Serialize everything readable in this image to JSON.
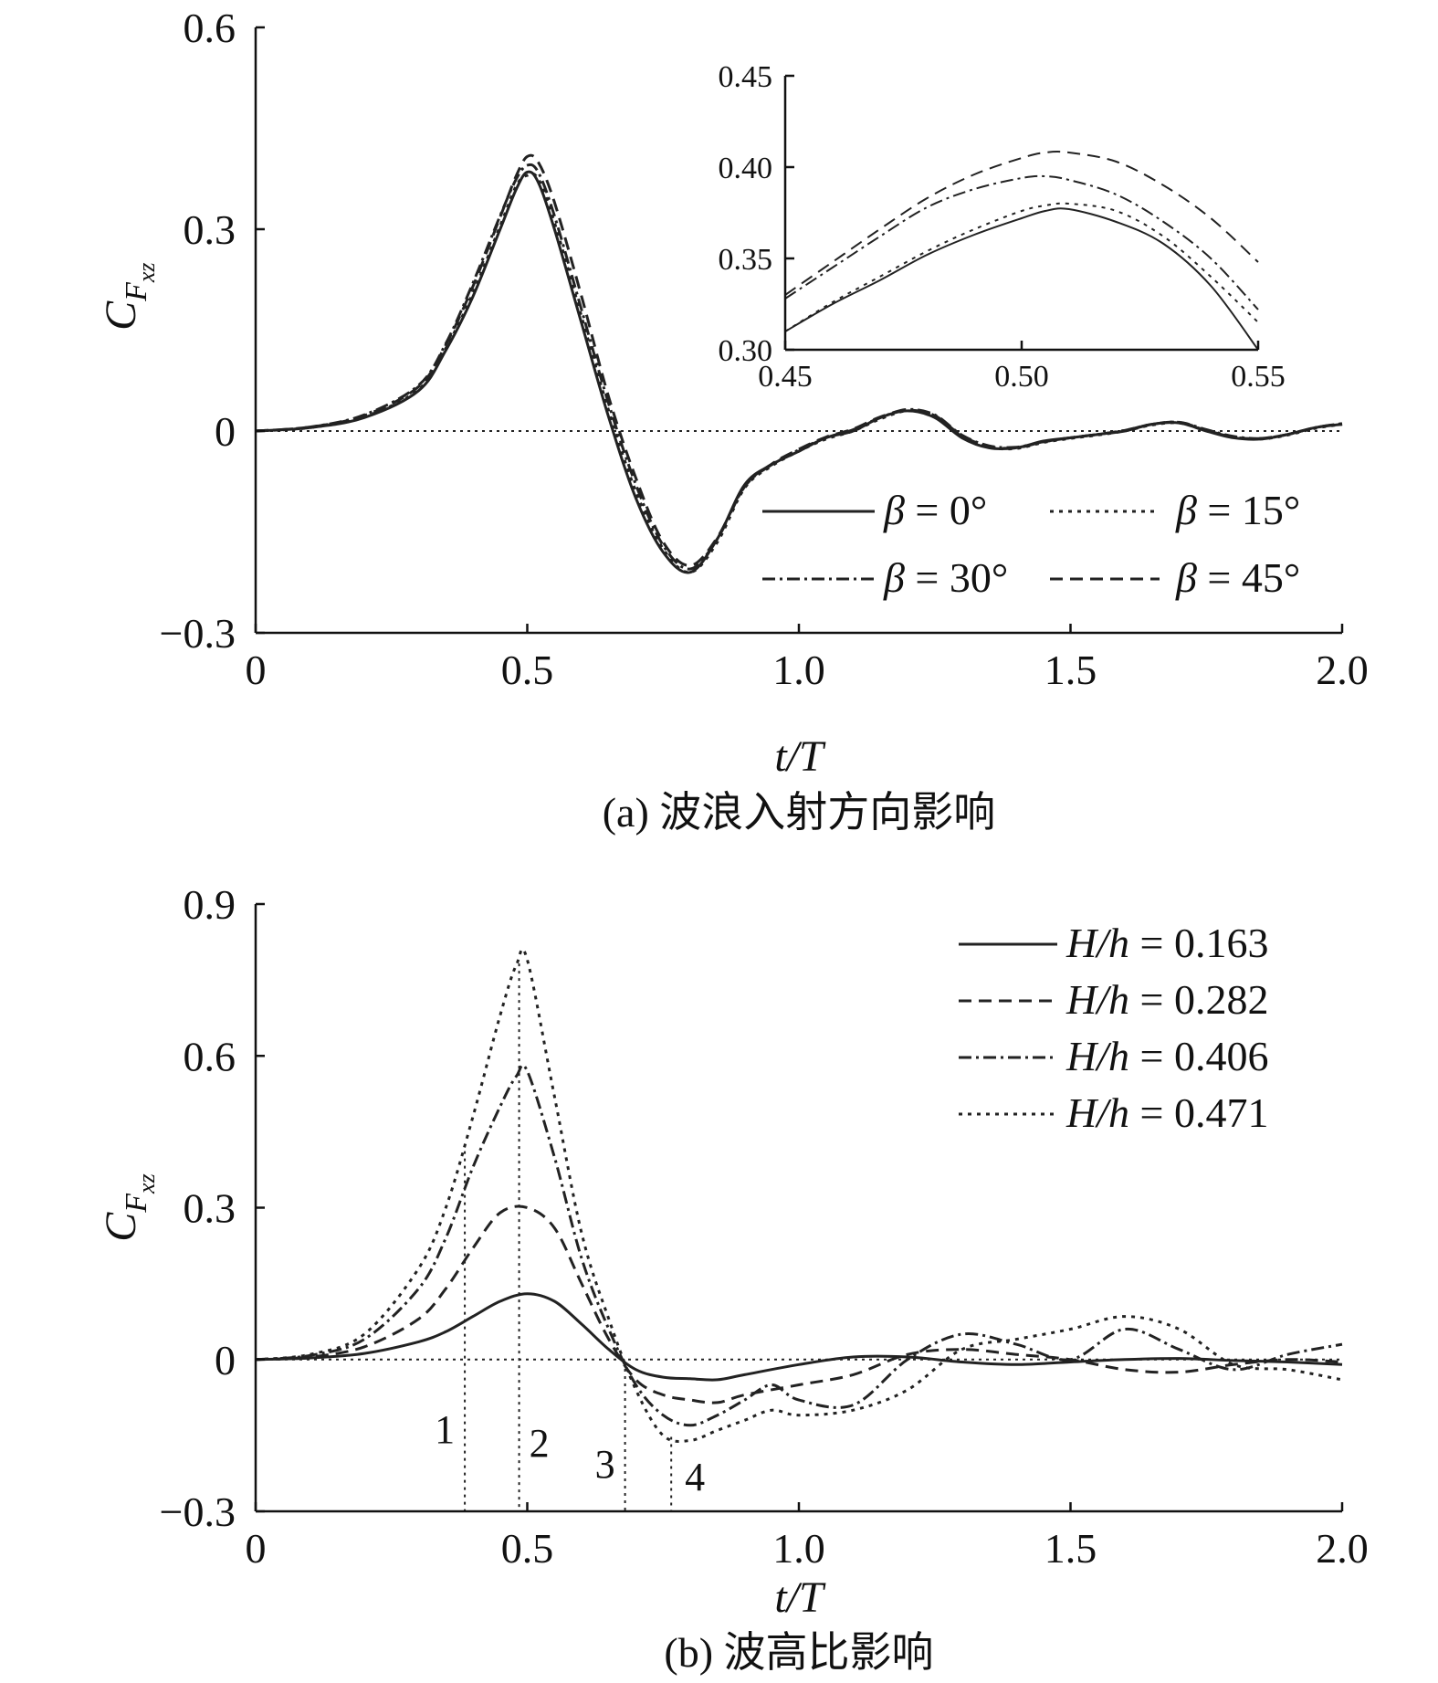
{
  "chart_data": [
    {
      "type": "line",
      "caption": "(a) 波浪入射方向影响",
      "xlabel": "t/T",
      "ylabel": "C_Fxz",
      "ylabel_main": "C",
      "ylabel_sub": "F",
      "ylabel_subsub": "xz",
      "xlim": [
        0,
        2.0
      ],
      "ylim": [
        -0.3,
        0.6
      ],
      "xticks": [
        0,
        0.5,
        1.0,
        1.5,
        2.0
      ],
      "xtick_labels": [
        "0",
        "0.5",
        "1.0",
        "1.5",
        "2.0"
      ],
      "yticks": [
        -0.3,
        0,
        0.3,
        0.6
      ],
      "ytick_labels": [
        "−0.3",
        "0",
        "0.3",
        "0.6"
      ],
      "legend_position": "lower-right",
      "series": [
        {
          "name": "β = 0°",
          "label_sym": "β",
          "label_val": " = 0°",
          "dash": "solid",
          "x": [
            0,
            0.1,
            0.2,
            0.3,
            0.35,
            0.4,
            0.45,
            0.48,
            0.5,
            0.52,
            0.55,
            0.6,
            0.65,
            0.7,
            0.75,
            0.8,
            0.85,
            0.9,
            0.95,
            1.0,
            1.05,
            1.1,
            1.15,
            1.2,
            1.25,
            1.3,
            1.35,
            1.4,
            1.45,
            1.5,
            1.55,
            1.6,
            1.65,
            1.7,
            1.75,
            1.8,
            1.85,
            1.9,
            1.95,
            2.0
          ],
          "y": [
            0,
            0.005,
            0.02,
            0.06,
            0.12,
            0.2,
            0.3,
            0.36,
            0.385,
            0.37,
            0.3,
            0.16,
            0.02,
            -0.1,
            -0.18,
            -0.21,
            -0.16,
            -0.08,
            -0.05,
            -0.03,
            -0.01,
            0.0,
            0.02,
            0.03,
            0.02,
            -0.01,
            -0.025,
            -0.025,
            -0.015,
            -0.01,
            -0.005,
            0.0,
            0.01,
            0.012,
            0.0,
            -0.01,
            -0.012,
            -0.005,
            0.005,
            0.01
          ]
        },
        {
          "name": "β = 15°",
          "label_sym": "β",
          "label_val": " = 15°",
          "dash": "4 6",
          "x": [
            0,
            0.1,
            0.2,
            0.3,
            0.35,
            0.4,
            0.45,
            0.48,
            0.5,
            0.52,
            0.55,
            0.6,
            0.65,
            0.7,
            0.75,
            0.8,
            0.85,
            0.9,
            0.95,
            1.0,
            1.05,
            1.1,
            1.15,
            1.2,
            1.25,
            1.3,
            1.35,
            1.4,
            1.45,
            1.5,
            1.55,
            1.6,
            1.65,
            1.7,
            1.75,
            1.8,
            1.85,
            1.9,
            1.95,
            2.0
          ],
          "y": [
            0,
            0.005,
            0.021,
            0.062,
            0.123,
            0.205,
            0.305,
            0.365,
            0.38,
            0.375,
            0.31,
            0.17,
            0.03,
            -0.09,
            -0.175,
            -0.21,
            -0.165,
            -0.085,
            -0.052,
            -0.03,
            -0.012,
            0.0,
            0.018,
            0.03,
            0.022,
            -0.008,
            -0.024,
            -0.026,
            -0.017,
            -0.011,
            -0.006,
            0.0,
            0.009,
            0.012,
            0.001,
            -0.009,
            -0.012,
            -0.006,
            0.004,
            0.01
          ]
        },
        {
          "name": "β = 30°",
          "label_sym": "β",
          "label_val": " = 30°",
          "dash": "14 5 3 5",
          "x": [
            0,
            0.1,
            0.2,
            0.3,
            0.35,
            0.4,
            0.45,
            0.48,
            0.5,
            0.52,
            0.55,
            0.6,
            0.65,
            0.7,
            0.75,
            0.8,
            0.85,
            0.9,
            0.95,
            1.0,
            1.05,
            1.1,
            1.15,
            1.2,
            1.25,
            1.3,
            1.35,
            1.4,
            1.45,
            1.5,
            1.55,
            1.6,
            1.65,
            1.7,
            1.75,
            1.8,
            1.85,
            1.9,
            1.95,
            2.0
          ],
          "y": [
            0,
            0.006,
            0.024,
            0.068,
            0.13,
            0.22,
            0.32,
            0.375,
            0.395,
            0.385,
            0.32,
            0.18,
            0.04,
            -0.08,
            -0.17,
            -0.205,
            -0.16,
            -0.083,
            -0.05,
            -0.028,
            -0.01,
            0.002,
            0.02,
            0.032,
            0.024,
            -0.006,
            -0.022,
            -0.024,
            -0.016,
            -0.01,
            -0.005,
            0.001,
            0.01,
            0.013,
            0.002,
            -0.008,
            -0.011,
            -0.005,
            0.005,
            0.011
          ]
        },
        {
          "name": "β = 45°",
          "label_sym": "β",
          "label_val": " = 45°",
          "dash": "14 8",
          "x": [
            0,
            0.1,
            0.2,
            0.3,
            0.35,
            0.4,
            0.45,
            0.48,
            0.5,
            0.52,
            0.55,
            0.6,
            0.65,
            0.7,
            0.75,
            0.8,
            0.85,
            0.9,
            0.95,
            1.0,
            1.05,
            1.1,
            1.15,
            1.2,
            1.25,
            1.3,
            1.35,
            1.4,
            1.45,
            1.5,
            1.55,
            1.6,
            1.65,
            1.7,
            1.75,
            1.8,
            1.85,
            1.9,
            1.95,
            2.0
          ],
          "y": [
            0,
            0.006,
            0.023,
            0.066,
            0.128,
            0.215,
            0.318,
            0.38,
            0.408,
            0.4,
            0.34,
            0.2,
            0.05,
            -0.07,
            -0.165,
            -0.2,
            -0.158,
            -0.082,
            -0.049,
            -0.027,
            -0.009,
            0.003,
            0.021,
            0.031,
            0.023,
            -0.007,
            -0.023,
            -0.025,
            -0.016,
            -0.01,
            -0.005,
            0.001,
            0.01,
            0.013,
            0.001,
            -0.009,
            -0.011,
            -0.005,
            0.005,
            0.011
          ]
        }
      ],
      "inset": {
        "xlim": [
          0.45,
          0.55
        ],
        "ylim": [
          0.3,
          0.45
        ],
        "xticks": [
          0.45,
          0.5,
          0.55
        ],
        "xtick_labels": [
          "0.45",
          "0.50",
          "0.55"
        ],
        "yticks": [
          0.3,
          0.35,
          0.4,
          0.45
        ],
        "ytick_labels": [
          "0.30",
          "0.35",
          "0.40",
          "0.45"
        ],
        "series": [
          {
            "name": "β = 0°",
            "dash": "solid",
            "x": [
              0.45,
              0.46,
              0.47,
              0.48,
              0.49,
              0.5,
              0.505,
              0.51,
              0.52,
              0.53,
              0.54,
              0.55
            ],
            "y": [
              0.31,
              0.325,
              0.338,
              0.352,
              0.363,
              0.372,
              0.376,
              0.377,
              0.37,
              0.358,
              0.335,
              0.3
            ]
          },
          {
            "name": "β = 15°",
            "dash": "4 6",
            "x": [
              0.45,
              0.46,
              0.47,
              0.48,
              0.49,
              0.5,
              0.505,
              0.51,
              0.52,
              0.53,
              0.54,
              0.55
            ],
            "y": [
              0.31,
              0.326,
              0.34,
              0.354,
              0.366,
              0.376,
              0.379,
              0.38,
              0.376,
              0.362,
              0.34,
              0.315
            ]
          },
          {
            "name": "β = 30°",
            "dash": "14 5 3 5",
            "x": [
              0.45,
              0.46,
              0.47,
              0.48,
              0.49,
              0.5,
              0.505,
              0.51,
              0.52,
              0.53,
              0.54,
              0.55
            ],
            "y": [
              0.328,
              0.345,
              0.362,
              0.378,
              0.388,
              0.394,
              0.395,
              0.393,
              0.385,
              0.37,
              0.35,
              0.322
            ]
          },
          {
            "name": "β = 45°",
            "dash": "14 8",
            "x": [
              0.45,
              0.46,
              0.47,
              0.48,
              0.49,
              0.5,
              0.505,
              0.51,
              0.52,
              0.53,
              0.54,
              0.55
            ],
            "y": [
              0.33,
              0.348,
              0.366,
              0.383,
              0.396,
              0.405,
              0.408,
              0.408,
              0.403,
              0.39,
              0.372,
              0.348
            ]
          }
        ]
      }
    },
    {
      "type": "line",
      "caption": "(b) 波高比影响",
      "xlabel": "t/T",
      "ylabel": "C_Fxz",
      "ylabel_main": "C",
      "ylabel_sub": "F",
      "ylabel_subsub": "xz",
      "xlim": [
        0,
        2.0
      ],
      "ylim": [
        -0.3,
        0.9
      ],
      "xticks": [
        0,
        0.5,
        1.0,
        1.5,
        2.0
      ],
      "xtick_labels": [
        "0",
        "0.5",
        "1.0",
        "1.5",
        "2.0"
      ],
      "yticks": [
        -0.3,
        0,
        0.3,
        0.6,
        0.9
      ],
      "ytick_labels": [
        "−0.3",
        "0",
        "0.3",
        "0.6",
        "0.9"
      ],
      "legend_position": "top-right",
      "markers": [
        {
          "label": "1",
          "x": 0.385
        },
        {
          "label": "2",
          "x": 0.485
        },
        {
          "label": "3",
          "x": 0.68
        },
        {
          "label": "4",
          "x": 0.765
        }
      ],
      "series": [
        {
          "name": "H/h = 0.163",
          "label_sym": "H/h",
          "label_val": " = 0.163",
          "dash": "solid",
          "x": [
            0,
            0.1,
            0.2,
            0.3,
            0.35,
            0.4,
            0.45,
            0.5,
            0.55,
            0.6,
            0.65,
            0.7,
            0.75,
            0.8,
            0.85,
            0.9,
            1.0,
            1.1,
            1.2,
            1.3,
            1.4,
            1.5,
            1.6,
            1.7,
            1.8,
            1.9,
            2.0
          ],
          "y": [
            0,
            0.003,
            0.012,
            0.035,
            0.055,
            0.085,
            0.115,
            0.13,
            0.115,
            0.07,
            0.02,
            -0.02,
            -0.035,
            -0.038,
            -0.04,
            -0.03,
            -0.01,
            0.005,
            0.005,
            -0.005,
            -0.01,
            -0.005,
            0.0,
            0.002,
            -0.002,
            -0.005,
            -0.01
          ]
        },
        {
          "name": "H/h = 0.282",
          "label_sym": "H/h",
          "label_val": " = 0.282",
          "dash": "14 8",
          "x": [
            0,
            0.1,
            0.2,
            0.3,
            0.35,
            0.4,
            0.45,
            0.5,
            0.55,
            0.6,
            0.65,
            0.7,
            0.75,
            0.8,
            0.85,
            0.9,
            1.0,
            1.1,
            1.2,
            1.3,
            1.4,
            1.5,
            1.6,
            1.7,
            1.8,
            1.9,
            2.0
          ],
          "y": [
            0,
            0.005,
            0.025,
            0.08,
            0.14,
            0.22,
            0.29,
            0.3,
            0.26,
            0.15,
            0.04,
            -0.04,
            -0.07,
            -0.08,
            -0.085,
            -0.07,
            -0.05,
            -0.03,
            0.01,
            0.02,
            0.01,
            0.0,
            -0.02,
            -0.025,
            -0.01,
            0.0,
            -0.005
          ]
        },
        {
          "name": "H/h = 0.406",
          "label_sym": "H/h",
          "label_val": " = 0.406",
          "dash": "14 5 3 5",
          "x": [
            0,
            0.1,
            0.2,
            0.3,
            0.35,
            0.4,
            0.45,
            0.48,
            0.5,
            0.55,
            0.6,
            0.65,
            0.7,
            0.75,
            0.8,
            0.85,
            0.9,
            0.95,
            1.0,
            1.1,
            1.2,
            1.3,
            1.4,
            1.5,
            1.6,
            1.7,
            1.8,
            1.9,
            2.0
          ],
          "y": [
            0,
            0.008,
            0.04,
            0.14,
            0.24,
            0.38,
            0.5,
            0.56,
            0.57,
            0.4,
            0.2,
            0.06,
            -0.05,
            -0.11,
            -0.13,
            -0.11,
            -0.08,
            -0.05,
            -0.08,
            -0.09,
            0.0,
            0.05,
            0.03,
            0.0,
            0.06,
            0.02,
            -0.02,
            0.01,
            0.03
          ]
        },
        {
          "name": "H/h = 0.471",
          "label_sym": "H/h",
          "label_val": " = 0.471",
          "dash": "4 6",
          "x": [
            0,
            0.1,
            0.2,
            0.3,
            0.35,
            0.4,
            0.45,
            0.48,
            0.5,
            0.55,
            0.6,
            0.65,
            0.7,
            0.75,
            0.8,
            0.85,
            0.9,
            0.95,
            1.0,
            1.1,
            1.2,
            1.3,
            1.4,
            1.5,
            1.6,
            1.7,
            1.8,
            1.9,
            2.0
          ],
          "y": [
            0,
            0.01,
            0.05,
            0.18,
            0.3,
            0.48,
            0.68,
            0.78,
            0.79,
            0.52,
            0.25,
            0.08,
            -0.06,
            -0.15,
            -0.16,
            -0.14,
            -0.12,
            -0.1,
            -0.11,
            -0.1,
            -0.06,
            0.02,
            0.04,
            0.06,
            0.085,
            0.06,
            -0.01,
            -0.02,
            -0.04
          ]
        }
      ]
    }
  ]
}
